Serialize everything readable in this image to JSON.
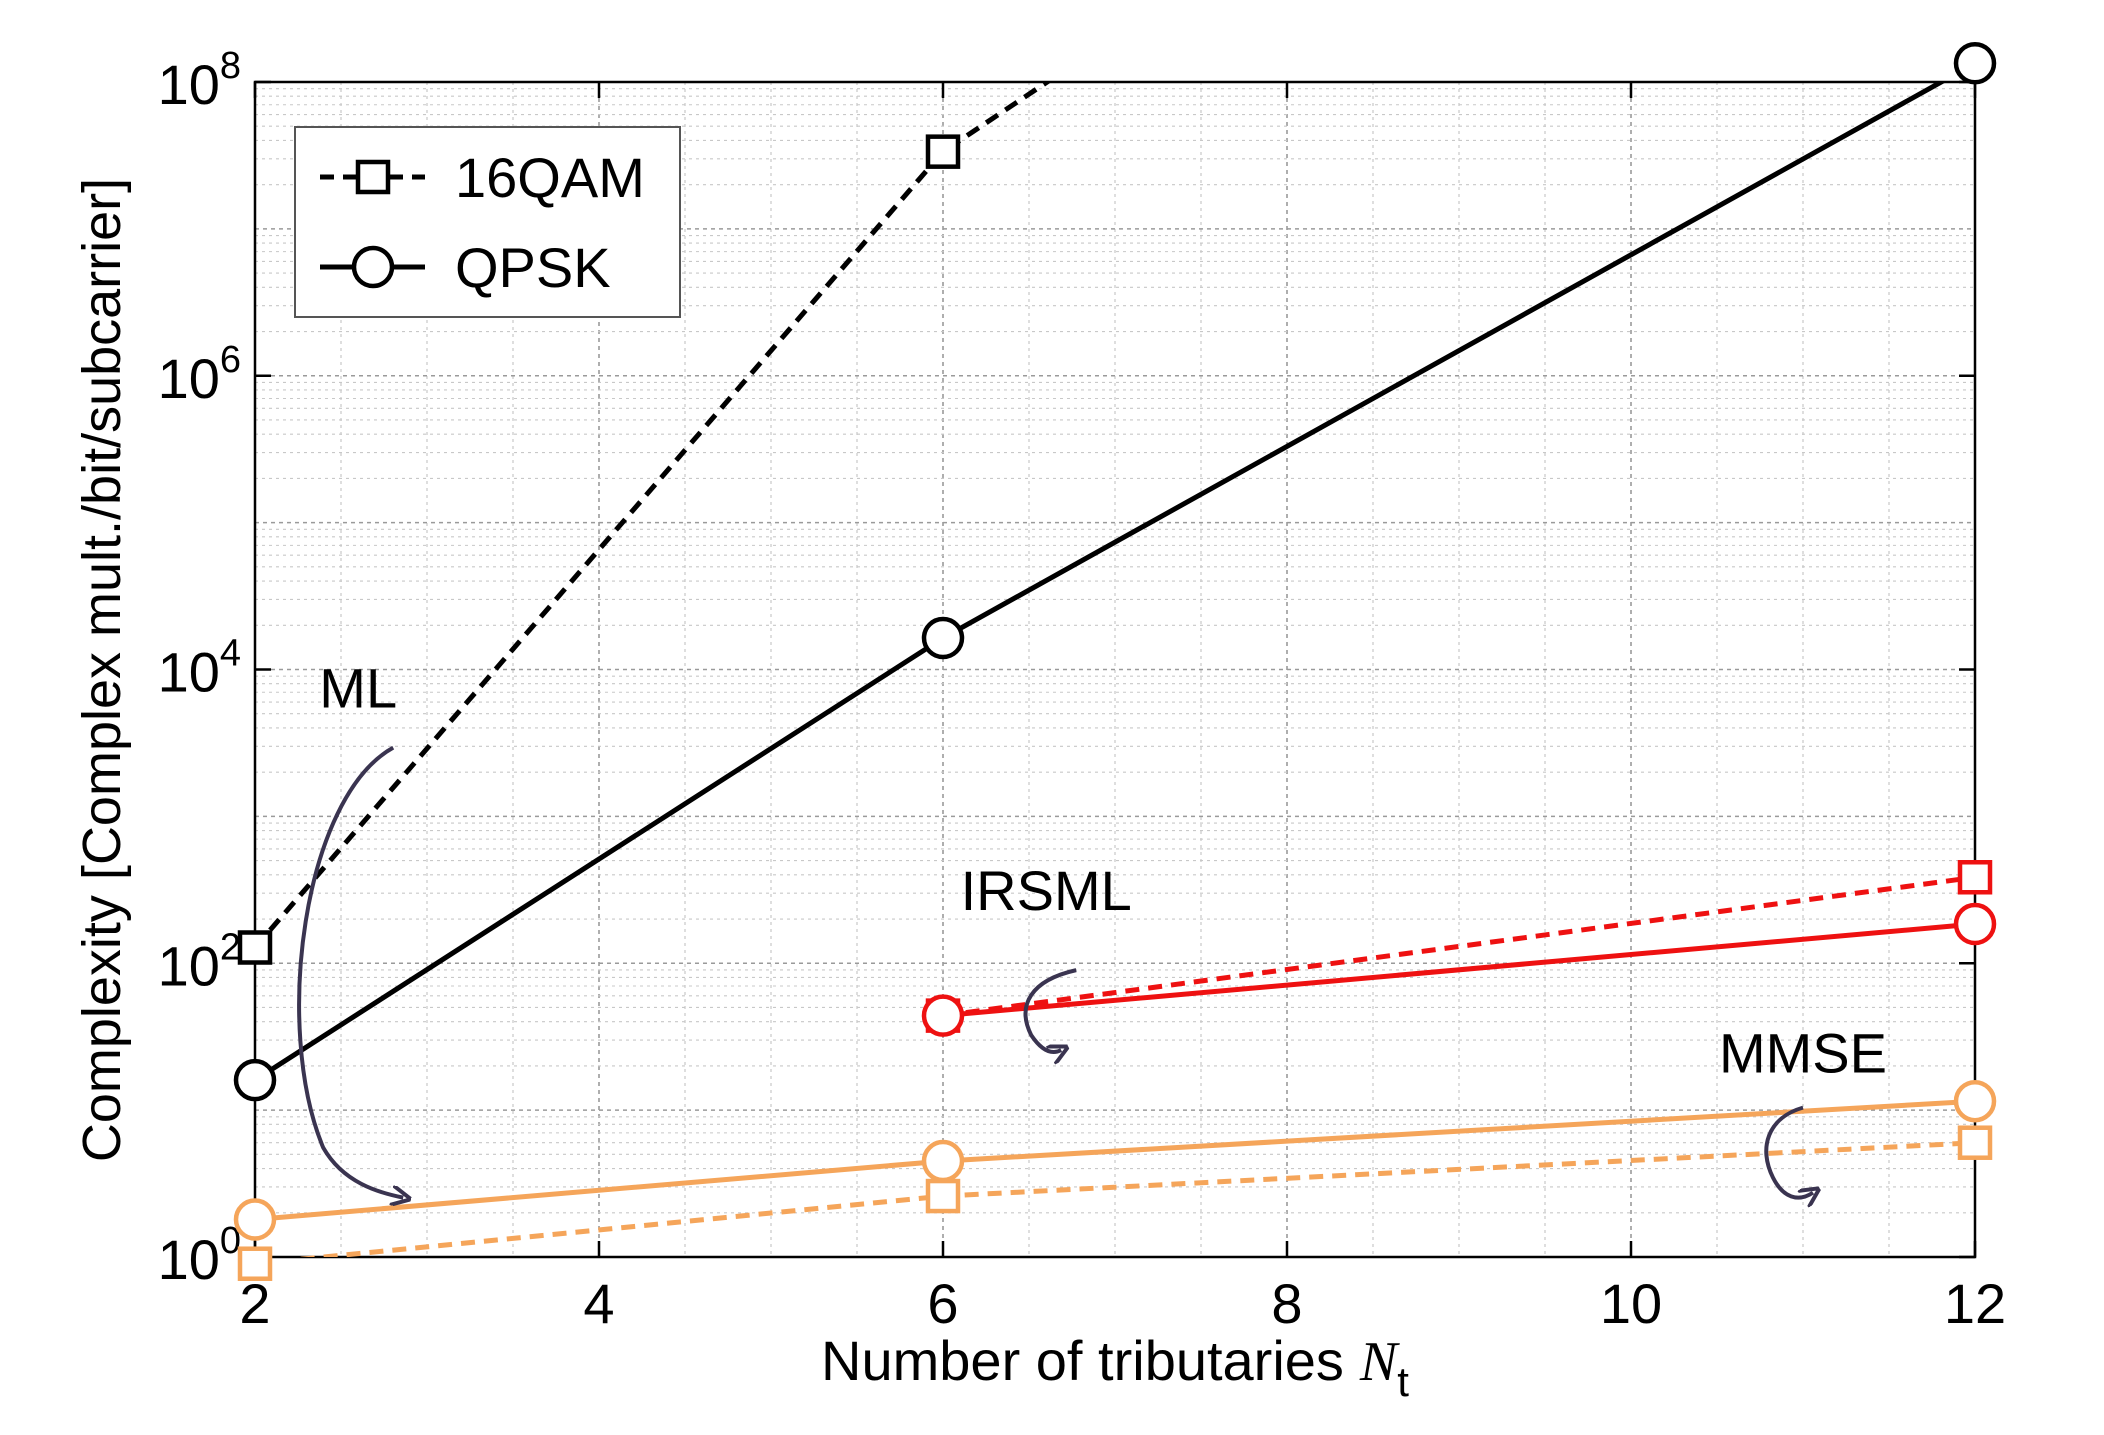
{
  "chart_data": {
    "type": "line",
    "xlabel": "Number of tributaries",
    "xlabel_symbol": "N",
    "xlabel_subscript": "t",
    "ylabel": "Complexity [Complex mult./bit/subcarrier]",
    "yscale": "log",
    "xlim": [
      2,
      12
    ],
    "ylim": [
      1,
      100000000
    ],
    "x_ticks": [
      {
        "value": 2,
        "label": "2"
      },
      {
        "value": 4,
        "label": "4"
      },
      {
        "value": 6,
        "label": "6"
      },
      {
        "value": 8,
        "label": "8"
      },
      {
        "value": 10,
        "label": "10"
      },
      {
        "value": 12,
        "label": "12"
      }
    ],
    "y_ticks": [
      {
        "value": 1,
        "base": "10",
        "exp": "0"
      },
      {
        "value": 100,
        "base": "10",
        "exp": "2"
      },
      {
        "value": 10000,
        "base": "10",
        "exp": "4"
      },
      {
        "value": 1000000,
        "base": "10",
        "exp": "6"
      },
      {
        "value": 100000000,
        "base": "10",
        "exp": "8"
      }
    ],
    "grid": true,
    "legend_position": "top-left",
    "legend": [
      {
        "label": "16QAM",
        "marker": "square",
        "dash": "dashed"
      },
      {
        "label": "QPSK",
        "marker": "circle",
        "dash": "solid"
      }
    ],
    "series": [
      {
        "name": "ML 16QAM",
        "group": "ML",
        "modulation": "16QAM",
        "color": "#000000",
        "dash": "dashed",
        "marker": "square",
        "x": [
          2,
          6
        ],
        "values": [
          128,
          33554432
        ],
        "line_extends_to": [
          6.8,
          142000000
        ]
      },
      {
        "name": "ML QPSK",
        "group": "ML",
        "modulation": "QPSK",
        "color": "#000000",
        "dash": "solid",
        "marker": "circle",
        "x": [
          2,
          6,
          12
        ],
        "values": [
          16,
          16384,
          134217728
        ]
      },
      {
        "name": "IRSML 16QAM",
        "group": "IRSML",
        "modulation": "16QAM",
        "color": "#ee1111",
        "dash": "dashed",
        "marker": "square",
        "x": [
          6,
          12
        ],
        "values": [
          44,
          385
        ]
      },
      {
        "name": "IRSML QPSK",
        "group": "IRSML",
        "modulation": "QPSK",
        "color": "#ee1111",
        "dash": "solid",
        "marker": "circle",
        "x": [
          6,
          12
        ],
        "values": [
          44,
          185
        ]
      },
      {
        "name": "MMSE QPSK",
        "group": "MMSE",
        "modulation": "QPSK",
        "color": "#f5a55a",
        "dash": "solid",
        "marker": "circle",
        "x": [
          2,
          6,
          12
        ],
        "values": [
          1.8,
          4.5,
          11.5
        ]
      },
      {
        "name": "MMSE 16QAM",
        "group": "MMSE",
        "modulation": "16QAM",
        "color": "#f5a55a",
        "dash": "dashed",
        "marker": "square",
        "x": [
          2,
          6,
          12
        ],
        "values": [
          0.9,
          2.6,
          6.0
        ]
      }
    ],
    "annotations": [
      {
        "text": "ML",
        "near_x": 2.6,
        "near_y": 5500
      },
      {
        "text": "IRSML",
        "near_x": 6.6,
        "near_y": 230
      },
      {
        "text": "MMSE",
        "near_x": 11.0,
        "near_y": 18
      }
    ]
  }
}
